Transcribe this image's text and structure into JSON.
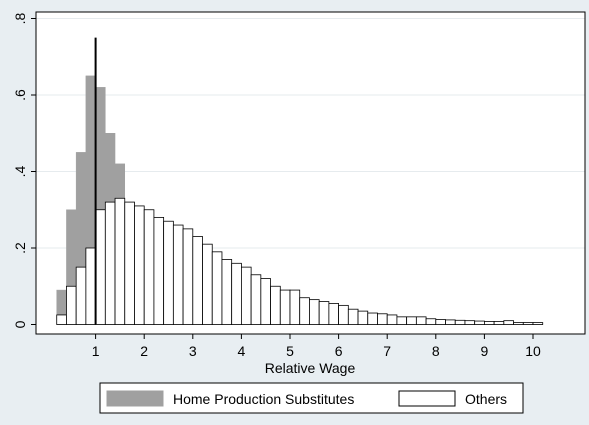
{
  "chart_data": {
    "type": "bar",
    "xlabel": "Relative Wage",
    "ylabel": "",
    "xlim": [
      0,
      11.5
    ],
    "ylim": [
      0,
      0.8
    ],
    "x_ticks": [
      1,
      2,
      3,
      4,
      5,
      6,
      7,
      8,
      9,
      10
    ],
    "x_tick_labels": [
      "1",
      "2",
      "3",
      "4",
      "5",
      "6",
      "7",
      "8",
      "9",
      "10"
    ],
    "y_ticks": [
      0,
      0.2,
      0.4,
      0.6,
      0.8
    ],
    "y_tick_labels": [
      "0",
      ".2",
      ".4",
      ".6",
      ".8"
    ],
    "grid": true,
    "bin_width": 0.2,
    "reference_line": {
      "x": 1,
      "y_top": 0.75
    },
    "legend": {
      "position": "bottom",
      "items": [
        {
          "label": "Home Production Substitutes",
          "fill": "#a0a0a0",
          "stroke": "#a0a0a0"
        },
        {
          "label": "Others",
          "fill": "#ffffff",
          "stroke": "#000000"
        }
      ]
    },
    "series": [
      {
        "name": "Home Production Substitutes",
        "fill": "#a0a0a0",
        "stroke": "#a0a0a0",
        "x_start": [
          0.2,
          0.4,
          0.6,
          0.8,
          1.0,
          1.2,
          1.4,
          1.6,
          1.8,
          2.0,
          2.2,
          2.4,
          2.6,
          2.8,
          3.0,
          3.2,
          3.4,
          3.6,
          3.8,
          4.0,
          4.2,
          4.4,
          4.6,
          4.8,
          5.0,
          5.2,
          5.4,
          5.6,
          5.8,
          6.0,
          6.2,
          6.4,
          6.6,
          6.8,
          7.0,
          7.2,
          7.4,
          7.6,
          7.8,
          8.0,
          8.2,
          8.4,
          8.6,
          8.8,
          9.0,
          9.2,
          9.4,
          9.6,
          9.8,
          10.0
        ],
        "values": [
          0.09,
          0.3,
          0.45,
          0.65,
          0.62,
          0.5,
          0.42,
          0.32,
          0.28,
          0.24,
          0.2,
          0.16,
          0.13,
          0.1,
          0.09,
          0.07,
          0.06,
          0.05,
          0.05,
          0.04,
          0.035,
          0.03,
          0.025,
          0.022,
          0.02,
          0.018,
          0.015,
          0.013,
          0.012,
          0.011,
          0.01,
          0.009,
          0.008,
          0.007,
          0.006,
          0.006,
          0.005,
          0.005,
          0.004,
          0.004,
          0.004,
          0.003,
          0.003,
          0.003,
          0.003,
          0.002,
          0.002,
          0.002,
          0.002,
          0.002
        ]
      },
      {
        "name": "Others",
        "fill": "#ffffff",
        "stroke": "#000000",
        "x_start": [
          0.2,
          0.4,
          0.6,
          0.8,
          1.0,
          1.2,
          1.4,
          1.6,
          1.8,
          2.0,
          2.2,
          2.4,
          2.6,
          2.8,
          3.0,
          3.2,
          3.4,
          3.6,
          3.8,
          4.0,
          4.2,
          4.4,
          4.6,
          4.8,
          5.0,
          5.2,
          5.4,
          5.6,
          5.8,
          6.0,
          6.2,
          6.4,
          6.6,
          6.8,
          7.0,
          7.2,
          7.4,
          7.6,
          7.8,
          8.0,
          8.2,
          8.4,
          8.6,
          8.8,
          9.0,
          9.2,
          9.4,
          9.6,
          9.8,
          10.0
        ],
        "values": [
          0.025,
          0.1,
          0.15,
          0.2,
          0.3,
          0.32,
          0.33,
          0.32,
          0.31,
          0.3,
          0.28,
          0.27,
          0.26,
          0.25,
          0.23,
          0.21,
          0.19,
          0.17,
          0.16,
          0.15,
          0.13,
          0.12,
          0.1,
          0.09,
          0.09,
          0.07,
          0.065,
          0.06,
          0.055,
          0.05,
          0.04,
          0.035,
          0.03,
          0.028,
          0.025,
          0.02,
          0.02,
          0.02,
          0.015,
          0.013,
          0.012,
          0.011,
          0.01,
          0.009,
          0.008,
          0.008,
          0.01,
          0.005,
          0.005,
          0.005
        ]
      }
    ]
  }
}
